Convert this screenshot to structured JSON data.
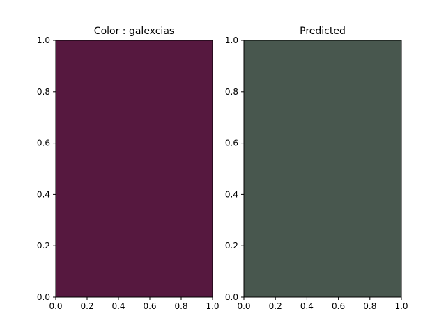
{
  "chart_data": [
    {
      "type": "heatmap",
      "title": "Color : galexcias",
      "fill_color": "#56183f",
      "xlim": [
        0,
        1
      ],
      "ylim": [
        0,
        1
      ],
      "x_ticks": [
        "0.0",
        "0.2",
        "0.4",
        "0.6",
        "0.8",
        "1.0"
      ],
      "y_ticks": [
        "0.0",
        "0.2",
        "0.4",
        "0.6",
        "0.8",
        "1.0"
      ],
      "grid": false
    },
    {
      "type": "heatmap",
      "title": "Predicted",
      "fill_color": "#48574e",
      "xlim": [
        0,
        1
      ],
      "ylim": [
        0,
        1
      ],
      "x_ticks": [
        "0.0",
        "0.2",
        "0.4",
        "0.6",
        "0.8",
        "1.0"
      ],
      "y_ticks": [
        "0.0",
        "0.2",
        "0.4",
        "0.6",
        "0.8",
        "1.0"
      ],
      "grid": false
    }
  ]
}
